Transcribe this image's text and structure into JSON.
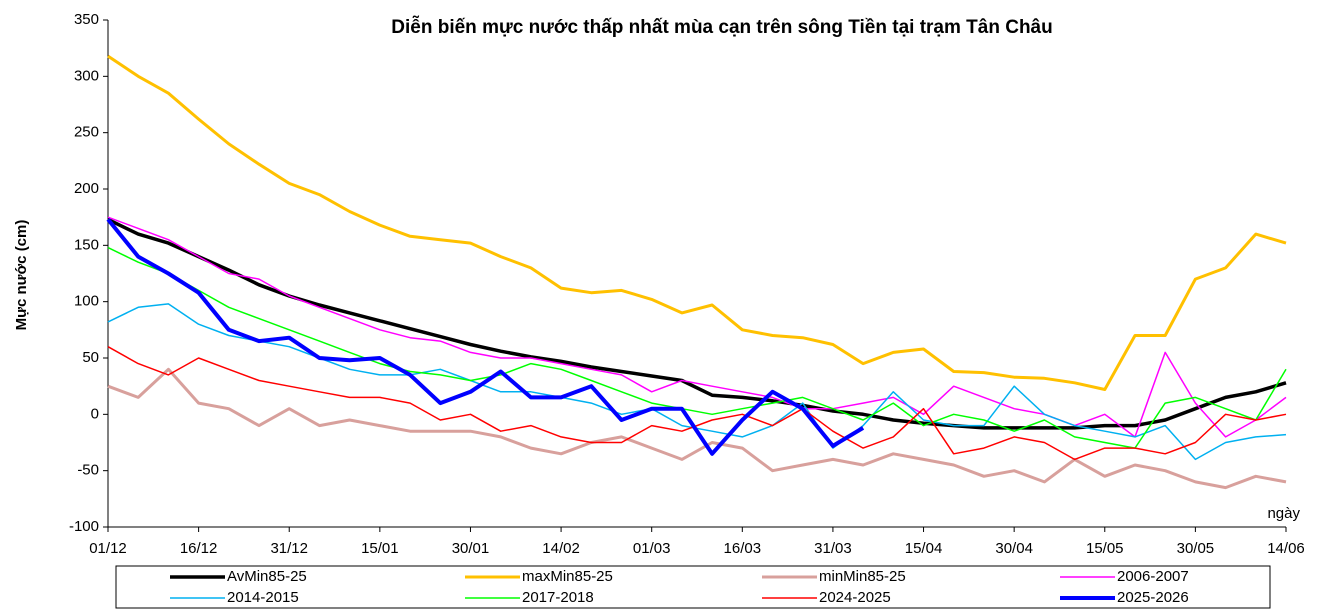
{
  "chart_data": {
    "type": "line",
    "title": "Diễn biến mực nước thấp nhất mùa cạn trên sông Tiền tại trạm Tân Châu",
    "y_label": "Mực nước (cm)",
    "x_label": "ngày",
    "categories": [
      "01/12",
      null,
      null,
      "16/12",
      null,
      null,
      "31/12",
      null,
      null,
      "15/01",
      null,
      null,
      "30/01",
      null,
      null,
      "14/02",
      null,
      null,
      "01/03",
      null,
      null,
      "16/03",
      null,
      null,
      "31/03",
      null,
      null,
      "15/04",
      null,
      null,
      "30/04",
      null,
      null,
      "15/05",
      null,
      null,
      "30/05",
      null,
      null,
      "14/06"
    ],
    "ylim": [
      -100,
      350
    ],
    "yticks": [
      -100,
      -50,
      0,
      50,
      100,
      150,
      200,
      250,
      300,
      350
    ],
    "grid": false,
    "legend": "bottom",
    "series": [
      {
        "name": "AvMin85-25",
        "color": "#000000",
        "line_width": 3.5,
        "values": [
          173,
          160,
          152,
          140,
          128,
          115,
          105,
          97,
          90,
          83,
          76,
          69,
          62,
          56,
          51,
          47,
          42,
          38,
          34,
          30,
          17,
          15,
          12,
          8,
          3,
          0,
          -5,
          -8,
          -10,
          -12,
          -12,
          -12,
          -12,
          -10,
          -10,
          -5,
          5,
          15,
          20,
          28
        ]
      },
      {
        "name": "maxMin85-25",
        "color": "#ffc000",
        "line_width": 3,
        "values": [
          318,
          300,
          285,
          262,
          240,
          222,
          205,
          195,
          180,
          168,
          158,
          155,
          152,
          140,
          130,
          112,
          108,
          110,
          102,
          90,
          97,
          75,
          70,
          68,
          62,
          45,
          55,
          58,
          38,
          37,
          33,
          32,
          28,
          22,
          70,
          70,
          120,
          130,
          160,
          152
        ]
      },
      {
        "name": "minMin85-25",
        "color": "#d8a09c",
        "line_width": 3,
        "values": [
          25,
          15,
          40,
          10,
          5,
          -10,
          5,
          -10,
          -5,
          -10,
          -15,
          -15,
          -15,
          -20,
          -30,
          -35,
          -25,
          -20,
          -30,
          -40,
          -25,
          -30,
          -50,
          -45,
          -40,
          -45,
          -35,
          -40,
          -45,
          -55,
          -50,
          -60,
          -40,
          -55,
          -45,
          -50,
          -60,
          -65,
          -55,
          -60
        ]
      },
      {
        "name": "2006-2007",
        "color": "#ff00ff",
        "line_width": 1.5,
        "values": [
          175,
          165,
          155,
          140,
          125,
          120,
          105,
          95,
          85,
          75,
          68,
          65,
          55,
          50,
          50,
          45,
          40,
          35,
          20,
          30,
          25,
          20,
          15,
          5,
          5,
          10,
          15,
          0,
          25,
          15,
          5,
          0,
          -10,
          0,
          -20,
          55,
          10,
          -20,
          -5,
          15
        ]
      },
      {
        "name": "2014-2015",
        "color": "#00b0f0",
        "line_width": 1.5,
        "values": [
          82,
          95,
          98,
          80,
          70,
          65,
          60,
          50,
          40,
          35,
          35,
          40,
          30,
          20,
          20,
          15,
          10,
          0,
          5,
          -10,
          -15,
          -20,
          -10,
          10,
          -30,
          -10,
          20,
          -5,
          -10,
          -10,
          25,
          0,
          -10,
          -15,
          -20,
          -10,
          -40,
          -25,
          -20,
          -18
        ]
      },
      {
        "name": "2017-2018",
        "color": "#00ff00",
        "line_width": 1.5,
        "values": [
          148,
          135,
          125,
          110,
          95,
          85,
          75,
          65,
          55,
          45,
          38,
          35,
          30,
          35,
          45,
          40,
          30,
          20,
          10,
          5,
          0,
          5,
          10,
          15,
          5,
          -5,
          10,
          -10,
          0,
          -5,
          -15,
          -5,
          -20,
          -25,
          -30,
          10,
          15,
          5,
          -5,
          40
        ]
      },
      {
        "name": "2024-2025",
        "color": "#ff0000",
        "line_width": 1.5,
        "values": [
          60,
          45,
          35,
          50,
          40,
          30,
          25,
          20,
          15,
          15,
          10,
          -5,
          0,
          -15,
          -10,
          -20,
          -25,
          -25,
          -10,
          -15,
          -5,
          0,
          -10,
          5,
          -15,
          -30,
          -20,
          5,
          -35,
          -30,
          -20,
          -25,
          -40,
          -30,
          -30,
          -35,
          -25,
          0,
          -5,
          0
        ]
      },
      {
        "name": "2025-2026",
        "color": "#0000ff",
        "line_width": 4,
        "values": [
          173,
          140,
          125,
          108,
          75,
          65,
          68,
          50,
          48,
          50,
          35,
          10,
          20,
          38,
          15,
          15,
          25,
          -5,
          5,
          5,
          -35,
          -5,
          20,
          5,
          -28,
          -12,
          null,
          null,
          null,
          null,
          null,
          null,
          null,
          null,
          null,
          null,
          null,
          null,
          null,
          null
        ]
      }
    ]
  }
}
